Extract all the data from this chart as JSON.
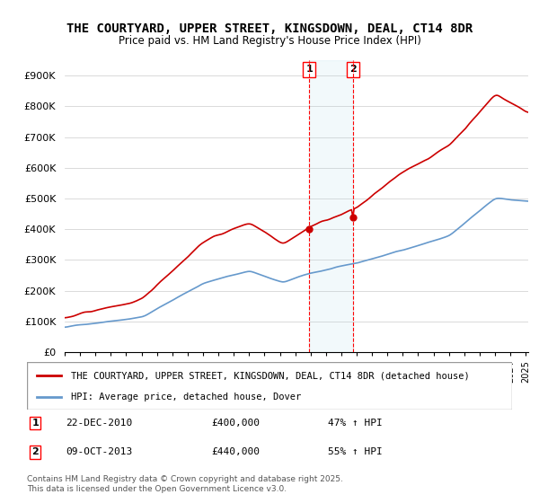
{
  "title": "THE COURTYARD, UPPER STREET, KINGSDOWN, DEAL, CT14 8DR",
  "subtitle": "Price paid vs. HM Land Registry's House Price Index (HPI)",
  "ylabel": "",
  "ylim": [
    0,
    950000
  ],
  "yticks": [
    0,
    100000,
    200000,
    300000,
    400000,
    500000,
    600000,
    700000,
    800000,
    900000
  ],
  "ytick_labels": [
    "£0",
    "£100K",
    "£200K",
    "£300K",
    "£400K",
    "£500K",
    "£600K",
    "£700K",
    "£800K",
    "£900K"
  ],
  "hpi_color": "#6699cc",
  "price_color": "#cc0000",
  "marker1_date_idx": 192,
  "marker2_date_idx": 228,
  "marker1_label": "22-DEC-2010",
  "marker2_label": "09-OCT-2013",
  "marker1_price": 400000,
  "marker2_price": 440000,
  "marker1_hpi_pct": "47% ↑ HPI",
  "marker2_hpi_pct": "55% ↑ HPI",
  "legend_line1": "THE COURTYARD, UPPER STREET, KINGSDOWN, DEAL, CT14 8DR (detached house)",
  "legend_line2": "HPI: Average price, detached house, Dover",
  "footer": "Contains HM Land Registry data © Crown copyright and database right 2025.\nThis data is licensed under the Open Government Licence v3.0.",
  "background_color": "#ffffff",
  "plot_bg_color": "#ffffff"
}
